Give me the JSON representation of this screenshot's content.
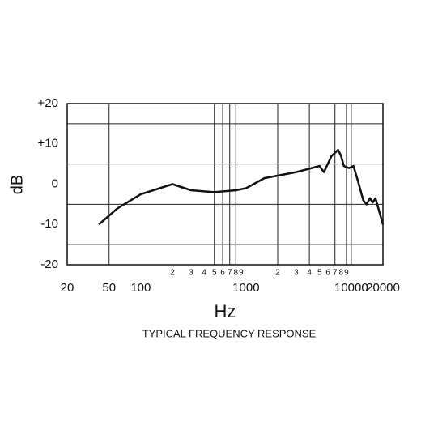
{
  "chart_data": {
    "type": "line",
    "title": "TYPICAL FREQUENCY RESPONSE",
    "x_label": "Hz",
    "y_label": "dB",
    "xscale": "log",
    "xlim": [
      20,
      20000
    ],
    "ylim": [
      -20,
      20
    ],
    "xticks": [
      20,
      50,
      100,
      1000,
      10000,
      20000
    ],
    "xminor_ticks": [
      {
        "value": 200,
        "label": "2"
      },
      {
        "value": 300,
        "label": "3"
      },
      {
        "value": 400,
        "label": "4"
      },
      {
        "value": 500,
        "label": "5"
      },
      {
        "value": 600,
        "label": "6"
      },
      {
        "value": 700,
        "label": "7"
      },
      {
        "value": 800,
        "label": "8"
      },
      {
        "value": 900,
        "label": "9"
      },
      {
        "value": 2000,
        "label": "2"
      },
      {
        "value": 3000,
        "label": "3"
      },
      {
        "value": 4000,
        "label": "4"
      },
      {
        "value": 5000,
        "label": "5"
      },
      {
        "value": 6000,
        "label": "6"
      },
      {
        "value": 7000,
        "label": "7"
      },
      {
        "value": 8000,
        "label": "8"
      },
      {
        "value": 9000,
        "label": "9"
      }
    ],
    "yticks": [
      {
        "value": 20,
        "label": "+20"
      },
      {
        "value": 10,
        "label": "+10"
      },
      0,
      -10,
      -20
    ],
    "xgrid": [
      50,
      500,
      600,
      700,
      800,
      2000,
      4000,
      7000,
      9000,
      10000
    ],
    "ygrid": [
      15,
      5,
      -5,
      -15
    ],
    "series": [
      {
        "color": "#111111",
        "x": [
          40,
          60,
          100,
          200,
          300,
          500,
          800,
          1000,
          1500,
          3000,
          5000,
          5500,
          6500,
          7500,
          8000,
          8500,
          9500,
          10500,
          11500,
          13000,
          14000,
          15000,
          16000,
          17000,
          20000
        ],
        "values": [
          -10,
          -6,
          -2.5,
          0,
          -1.5,
          -2,
          -1.5,
          -1,
          1.5,
          3,
          4.5,
          3,
          7,
          8.5,
          7,
          4.5,
          4,
          4.5,
          1,
          -4,
          -5,
          -3.5,
          -4.5,
          -3.5,
          -10
        ]
      }
    ]
  }
}
